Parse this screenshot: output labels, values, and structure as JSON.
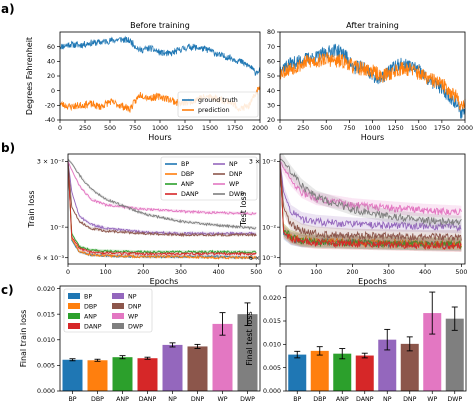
{
  "panel_labels": [
    "a)",
    "b)",
    "c)"
  ],
  "colors": {
    "ground_truth": "#1f77b4",
    "prediction": "#ff7f0e",
    "BP": "#1f77b4",
    "DBP": "#ff7f0e",
    "ANP": "#2ca02c",
    "DANP": "#d62728",
    "NP": "#9467bd",
    "DNP": "#8c564b",
    "WP": "#e377c2",
    "DWP": "#7f7f7f"
  },
  "chart_data": [
    {
      "id": "a-left",
      "type": "line",
      "title": "Before training",
      "xlabel": "Hours",
      "ylabel": "Degrees Fahrenheit",
      "xlim": [
        0,
        2000
      ],
      "ylim": [
        -40,
        80
      ],
      "xticks": [
        0,
        250,
        500,
        750,
        1000,
        1250,
        1500,
        1750,
        2000
      ],
      "yticks": [
        -40,
        -20,
        0,
        20,
        40,
        60
      ],
      "legend": [
        "ground truth",
        "prediction"
      ],
      "legend_loc": "lower-right",
      "series": [
        {
          "name": "ground truth",
          "x": [
            0,
            100,
            200,
            300,
            400,
            500,
            600,
            700,
            800,
            900,
            1000,
            1100,
            1200,
            1300,
            1400,
            1500,
            1600,
            1700,
            1800,
            1900,
            1950,
            2000
          ],
          "values": [
            60,
            63,
            62,
            65,
            66,
            68,
            70,
            68,
            55,
            58,
            52,
            50,
            56,
            60,
            58,
            55,
            48,
            45,
            40,
            33,
            25,
            28
          ]
        },
        {
          "name": "prediction",
          "x": [
            0,
            100,
            200,
            300,
            400,
            500,
            600,
            700,
            800,
            900,
            1000,
            1100,
            1200,
            1300,
            1400,
            1500,
            1600,
            1700,
            1800,
            1900,
            1950,
            2000
          ],
          "values": [
            -18,
            -22,
            -20,
            -18,
            -22,
            -15,
            -20,
            -25,
            -5,
            -10,
            -8,
            -12,
            -18,
            -15,
            -10,
            -8,
            -12,
            -15,
            -25,
            -20,
            -5,
            5
          ]
        }
      ]
    },
    {
      "id": "a-right",
      "type": "line",
      "title": "After training",
      "xlabel": "Hours",
      "ylabel": "",
      "xlim": [
        0,
        2000
      ],
      "ylim": [
        20,
        80
      ],
      "xticks": [
        0,
        250,
        500,
        750,
        1000,
        1250,
        1500,
        1750,
        2000
      ],
      "yticks": [
        20,
        30,
        40,
        50,
        60,
        70,
        80
      ],
      "series": [
        {
          "name": "ground truth",
          "x": [
            0,
            100,
            200,
            300,
            400,
            500,
            600,
            700,
            800,
            900,
            1000,
            1100,
            1200,
            1300,
            1400,
            1500,
            1600,
            1700,
            1800,
            1900,
            1950,
            2000
          ],
          "values": [
            55,
            58,
            60,
            62,
            63,
            66,
            68,
            65,
            55,
            57,
            50,
            48,
            55,
            58,
            57,
            54,
            47,
            44,
            38,
            32,
            25,
            27
          ]
        },
        {
          "name": "prediction",
          "x": [
            0,
            100,
            200,
            300,
            400,
            500,
            600,
            700,
            800,
            900,
            1000,
            1100,
            1200,
            1300,
            1400,
            1500,
            1600,
            1700,
            1800,
            1900,
            1950,
            2000
          ],
          "values": [
            52,
            55,
            57,
            60,
            60,
            62,
            60,
            60,
            56,
            55,
            53,
            50,
            52,
            55,
            55,
            52,
            48,
            46,
            42,
            36,
            30,
            32
          ]
        }
      ]
    },
    {
      "id": "b-left",
      "type": "line",
      "log_y": true,
      "xlabel": "Epochs",
      "ylabel": "Train loss",
      "xlim": [
        0,
        510
      ],
      "ylim": [
        0.0054,
        0.034
      ],
      "xticks": [
        0,
        100,
        200,
        300,
        400,
        500
      ],
      "yticks": [
        0.006,
        0.01,
        0.03
      ],
      "ytick_labels": [
        "6 × 10⁻³",
        "10⁻²",
        "3 × 10⁻²"
      ],
      "legend_loc": "upper-right",
      "legend": [
        "BP",
        "DBP",
        "ANP",
        "DANP",
        "NP",
        "DNP",
        "WP",
        "DWP"
      ],
      "series": [
        {
          "name": "BP",
          "x": [
            0,
            10,
            30,
            60,
            100,
            200,
            300,
            400,
            500
          ],
          "values": [
            0.03,
            0.008,
            0.0066,
            0.0063,
            0.0062,
            0.0061,
            0.0061,
            0.0061,
            0.006
          ]
        },
        {
          "name": "DBP",
          "x": [
            0,
            10,
            30,
            60,
            100,
            200,
            300,
            400,
            500
          ],
          "values": [
            0.03,
            0.0082,
            0.0067,
            0.0063,
            0.0062,
            0.0061,
            0.0061,
            0.006,
            0.006
          ]
        },
        {
          "name": "ANP",
          "x": [
            0,
            10,
            30,
            60,
            100,
            200,
            300,
            400,
            500
          ],
          "values": [
            0.03,
            0.009,
            0.0072,
            0.0068,
            0.0067,
            0.0066,
            0.0066,
            0.0066,
            0.0066
          ]
        },
        {
          "name": "DANP",
          "x": [
            0,
            10,
            30,
            60,
            100,
            200,
            300,
            400,
            500
          ],
          "values": [
            0.03,
            0.0085,
            0.007,
            0.0066,
            0.0065,
            0.0064,
            0.0064,
            0.0064,
            0.0064
          ]
        },
        {
          "name": "NP",
          "x": [
            0,
            10,
            30,
            60,
            100,
            200,
            300,
            400,
            500
          ],
          "values": [
            0.03,
            0.018,
            0.012,
            0.0105,
            0.0098,
            0.0092,
            0.009,
            0.009,
            0.009
          ]
        },
        {
          "name": "DNP",
          "x": [
            0,
            10,
            30,
            60,
            100,
            200,
            300,
            400,
            500
          ],
          "values": [
            0.03,
            0.014,
            0.011,
            0.0098,
            0.0094,
            0.009,
            0.0088,
            0.0088,
            0.0088
          ]
        },
        {
          "name": "WP",
          "x": [
            0,
            10,
            30,
            60,
            100,
            200,
            300,
            400,
            500
          ],
          "values": [
            0.03,
            0.026,
            0.02,
            0.016,
            0.0145,
            0.0135,
            0.013,
            0.0127,
            0.0125
          ]
        },
        {
          "name": "DWP",
          "x": [
            0,
            10,
            30,
            60,
            100,
            200,
            300,
            400,
            500
          ],
          "values": [
            0.031,
            0.029,
            0.024,
            0.019,
            0.016,
            0.0125,
            0.011,
            0.0103,
            0.0098
          ]
        }
      ]
    },
    {
      "id": "b-right",
      "type": "line",
      "log_y": true,
      "xlabel": "Epochs",
      "ylabel": "Test loss",
      "xlim": [
        0,
        510
      ],
      "ylim": [
        0.0054,
        0.034
      ],
      "xticks": [
        0,
        100,
        200,
        300,
        400,
        500
      ],
      "yticks": [
        0.006,
        0.01,
        0.03
      ],
      "ytick_labels": [
        "6 × 10⁻³",
        "10⁻²",
        "3 × 10⁻²"
      ],
      "series": [
        {
          "name": "BP",
          "x": [
            0,
            10,
            30,
            60,
            100,
            200,
            300,
            400,
            500
          ],
          "values": [
            0.03,
            0.009,
            0.0082,
            0.0079,
            0.0079,
            0.0077,
            0.0076,
            0.0075,
            0.0074
          ]
        },
        {
          "name": "DBP",
          "x": [
            0,
            10,
            30,
            60,
            100,
            200,
            300,
            400,
            500
          ],
          "values": [
            0.03,
            0.0095,
            0.0085,
            0.0081,
            0.008,
            0.0078,
            0.0077,
            0.0076,
            0.0075
          ]
        },
        {
          "name": "ANP",
          "x": [
            0,
            10,
            30,
            60,
            100,
            200,
            300,
            400,
            500
          ],
          "values": [
            0.03,
            0.0095,
            0.0085,
            0.008,
            0.0078,
            0.0077,
            0.0076,
            0.0075,
            0.0075
          ]
        },
        {
          "name": "DANP",
          "x": [
            0,
            10,
            30,
            60,
            100,
            200,
            300,
            400,
            500
          ],
          "values": [
            0.03,
            0.0092,
            0.0083,
            0.0079,
            0.0077,
            0.0076,
            0.0075,
            0.0074,
            0.0073
          ]
        },
        {
          "name": "NP",
          "x": [
            0,
            10,
            30,
            60,
            100,
            200,
            300,
            400,
            500
          ],
          "values": [
            0.03,
            0.018,
            0.013,
            0.0115,
            0.011,
            0.0105,
            0.0103,
            0.0102,
            0.01
          ]
        },
        {
          "name": "DNP",
          "x": [
            0,
            10,
            30,
            60,
            100,
            200,
            300,
            400,
            500
          ],
          "values": [
            0.03,
            0.014,
            0.0105,
            0.0095,
            0.009,
            0.0087,
            0.0086,
            0.0085,
            0.0085
          ]
        },
        {
          "name": "WP",
          "x": [
            0,
            10,
            30,
            60,
            100,
            200,
            300,
            400,
            500
          ],
          "values": [
            0.03,
            0.027,
            0.022,
            0.018,
            0.016,
            0.0145,
            0.0138,
            0.0132,
            0.0128
          ]
        },
        {
          "name": "DWP",
          "x": [
            0,
            10,
            30,
            60,
            100,
            200,
            300,
            400,
            500
          ],
          "values": [
            0.031,
            0.03,
            0.025,
            0.02,
            0.0165,
            0.0135,
            0.012,
            0.0112,
            0.0108
          ]
        }
      ]
    },
    {
      "id": "c-left",
      "type": "bar",
      "ylabel": "Final train loss",
      "ylim": [
        0,
        0.0205
      ],
      "yticks": [
        0.0,
        0.005,
        0.01,
        0.015,
        0.02
      ],
      "ytick_labels": [
        "0.000",
        "0.005",
        "0.010",
        "0.015",
        "0.020"
      ],
      "categories": [
        "BP",
        "DBP",
        "ANP",
        "DANP",
        "NP",
        "DNP",
        "WP",
        "DWP"
      ],
      "legend_loc": "upper-left",
      "legend": [
        "BP",
        "DBP",
        "ANP",
        "DANP",
        "NP",
        "DNP",
        "WP",
        "DWP"
      ],
      "values": [
        0.0061,
        0.006,
        0.0066,
        0.0064,
        0.009,
        0.0087,
        0.0131,
        0.015
      ],
      "errors": [
        0.0002,
        0.0002,
        0.0003,
        0.0002,
        0.0004,
        0.0004,
        0.0022,
        0.0022
      ]
    },
    {
      "id": "c-right",
      "type": "bar",
      "ylabel": "Final test loss",
      "ylim": [
        0,
        0.0225
      ],
      "yticks": [
        0.0,
        0.005,
        0.01,
        0.015,
        0.02
      ],
      "ytick_labels": [
        "0.000",
        "0.005",
        "0.010",
        "0.015",
        "0.020"
      ],
      "categories": [
        "BP",
        "DBP",
        "ANP",
        "DANP",
        "NP",
        "DNP",
        "WP",
        "DWP"
      ],
      "values": [
        0.0078,
        0.0086,
        0.008,
        0.0076,
        0.011,
        0.0101,
        0.0167,
        0.0155
      ],
      "errors": [
        0.0007,
        0.0009,
        0.0011,
        0.0005,
        0.0022,
        0.0015,
        0.0045,
        0.0025
      ]
    }
  ]
}
